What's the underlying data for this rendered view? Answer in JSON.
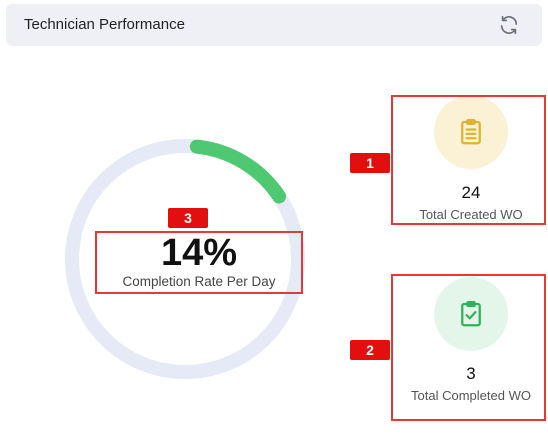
{
  "header": {
    "title": "Technician Performance",
    "refresh_icon": "refresh-icon"
  },
  "completion": {
    "value": "14%",
    "fraction": 0.14,
    "label": "Completion Rate Per Day",
    "track_color": "#e6eaf6",
    "progress_color": "#4fc971"
  },
  "stats": [
    {
      "value": "24",
      "label": "Total Created WO",
      "icon": "clipboard-list-icon",
      "icon_bg": "#fbf2d6",
      "icon_color": "#e0b42a"
    },
    {
      "value": "3",
      "label": "Total Completed WO",
      "icon": "clipboard-check-icon",
      "icon_bg": "#e3f6e9",
      "icon_color": "#2fb35a"
    }
  ],
  "annotations": {
    "badge_1": "1",
    "badge_2": "2",
    "badge_3": "3",
    "color": "#e30e0e"
  }
}
